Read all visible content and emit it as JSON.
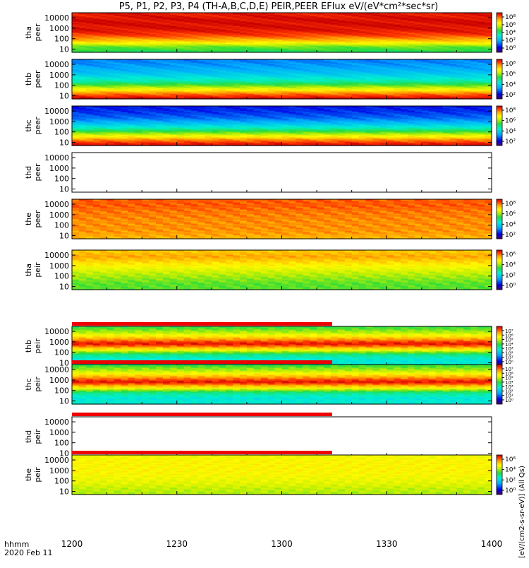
{
  "chart_data": {
    "type": "heatmap",
    "title": "P5, P1, P2, P3, P4 (TH-A,B,C,D,E) PEIR,PEER EFlux eV/(eV*cm²*sec*sr)",
    "x_axis": {
      "ticks": [
        "1200",
        "1230",
        "1300",
        "1330",
        "1400"
      ],
      "tick_values_min": [
        0,
        30,
        60,
        90,
        120
      ],
      "range_min": [
        0,
        120
      ],
      "label_line1": "hhmm",
      "label_line2": "2020 Feb 11"
    },
    "y_axis": {
      "scale": "log",
      "range_eV": [
        5,
        30000
      ],
      "ticks": [
        "10000",
        "1000",
        "100",
        "10"
      ],
      "tick_values": [
        10000,
        1000,
        100,
        10
      ]
    },
    "colorbar_label": "[eV/(cm2-s-sr-eV)] (All Qs)",
    "panels": [
      {
        "probe": "tha",
        "species": "peer",
        "has_data": true,
        "colorbar_ticks": [
          "10⁸",
          "10⁶",
          "10⁴",
          "10²",
          "10⁰"
        ],
        "bar_above": false,
        "profile": [
          0.52,
          0.6,
          0.8,
          0.92,
          0.97,
          0.98,
          0.98,
          0.96
        ]
      },
      {
        "probe": "thb",
        "species": "peer",
        "has_data": true,
        "colorbar_ticks": [
          "10⁸",
          "10⁶",
          "10⁴",
          "10²"
        ],
        "bar_above": false,
        "profile": [
          1.0,
          0.86,
          0.66,
          0.48,
          0.38,
          0.31,
          0.27,
          0.24
        ]
      },
      {
        "probe": "thc",
        "species": "peer",
        "has_data": true,
        "colorbar_ticks": [
          "10⁸",
          "10⁶",
          "10⁴",
          "10²"
        ],
        "bar_above": false,
        "profile": [
          1.0,
          0.86,
          0.66,
          0.46,
          0.32,
          0.22,
          0.17,
          0.14
        ]
      },
      {
        "probe": "thd",
        "species": "peer",
        "has_data": false,
        "colorbar_ticks": [],
        "bar_above": false,
        "profile": []
      },
      {
        "probe": "the",
        "species": "peer",
        "has_data": true,
        "colorbar_ticks": [
          "10⁸",
          "10⁶",
          "10⁴",
          "10²"
        ],
        "bar_above": false,
        "profile": [
          0.82,
          0.85,
          0.86,
          0.86,
          0.87,
          0.88,
          0.9,
          0.9
        ]
      },
      {
        "probe": "tha",
        "species": "peir",
        "has_data": true,
        "colorbar_ticks": [
          "10⁶",
          "10⁴",
          "10²",
          "10⁰"
        ],
        "bar_above": false,
        "profile": [
          0.58,
          0.58,
          0.62,
          0.66,
          0.72,
          0.78,
          0.84,
          0.8
        ]
      },
      {
        "probe": "thb",
        "species": "peir",
        "has_data": true,
        "colorbar_ticks": [
          "10⁷",
          "10⁶",
          "10⁵",
          "10⁴",
          "10³",
          "10²",
          "10¹",
          "10⁰"
        ],
        "bar_above": true,
        "profile": [
          0.42,
          0.4,
          0.48,
          0.76,
          0.98,
          0.82,
          0.66,
          0.56
        ]
      },
      {
        "probe": "thc",
        "species": "peir",
        "has_data": true,
        "colorbar_ticks": [
          "10⁷",
          "10⁶",
          "10⁵",
          "10⁴",
          "10³",
          "10²",
          "10¹",
          "10⁰"
        ],
        "bar_above": true,
        "profile": [
          0.42,
          0.4,
          0.48,
          0.76,
          0.98,
          0.82,
          0.66,
          0.56
        ]
      },
      {
        "probe": "thd",
        "species": "peir",
        "has_data": false,
        "colorbar_ticks": [],
        "bar_above": true,
        "profile": []
      },
      {
        "probe": "the",
        "species": "peir",
        "has_data": true,
        "colorbar_ticks": [
          "10⁶",
          "10⁴",
          "10²",
          "10⁰"
        ],
        "bar_above": true,
        "profile": [
          0.64,
          0.66,
          0.7,
          0.72,
          0.74,
          0.74,
          0.74,
          0.72
        ]
      }
    ]
  }
}
